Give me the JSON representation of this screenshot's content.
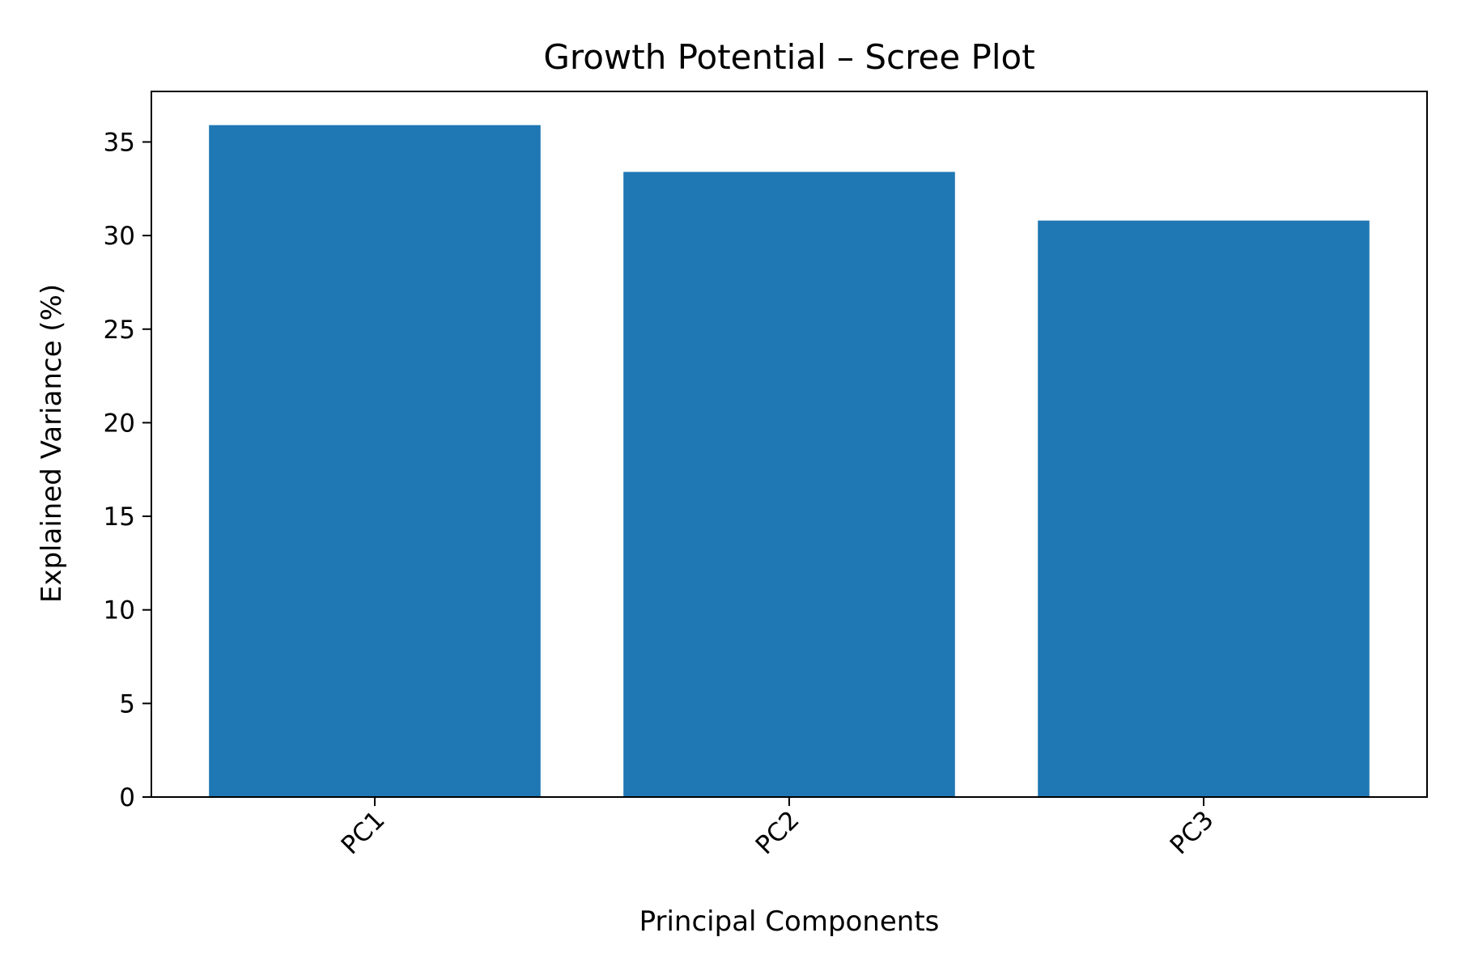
{
  "chart_data": {
    "type": "bar",
    "title": "Growth Potential – Scree Plot",
    "xlabel": "Principal Components",
    "ylabel": "Explained Variance (%)",
    "categories": [
      "PC1",
      "PC2",
      "PC3"
    ],
    "values": [
      35.9,
      33.4,
      30.8
    ],
    "ylim": [
      0,
      37.7
    ],
    "yticks": [
      0,
      5,
      10,
      15,
      20,
      25,
      30,
      35
    ],
    "bar_color": "#1f77b4",
    "grid": false,
    "legend": "none"
  }
}
